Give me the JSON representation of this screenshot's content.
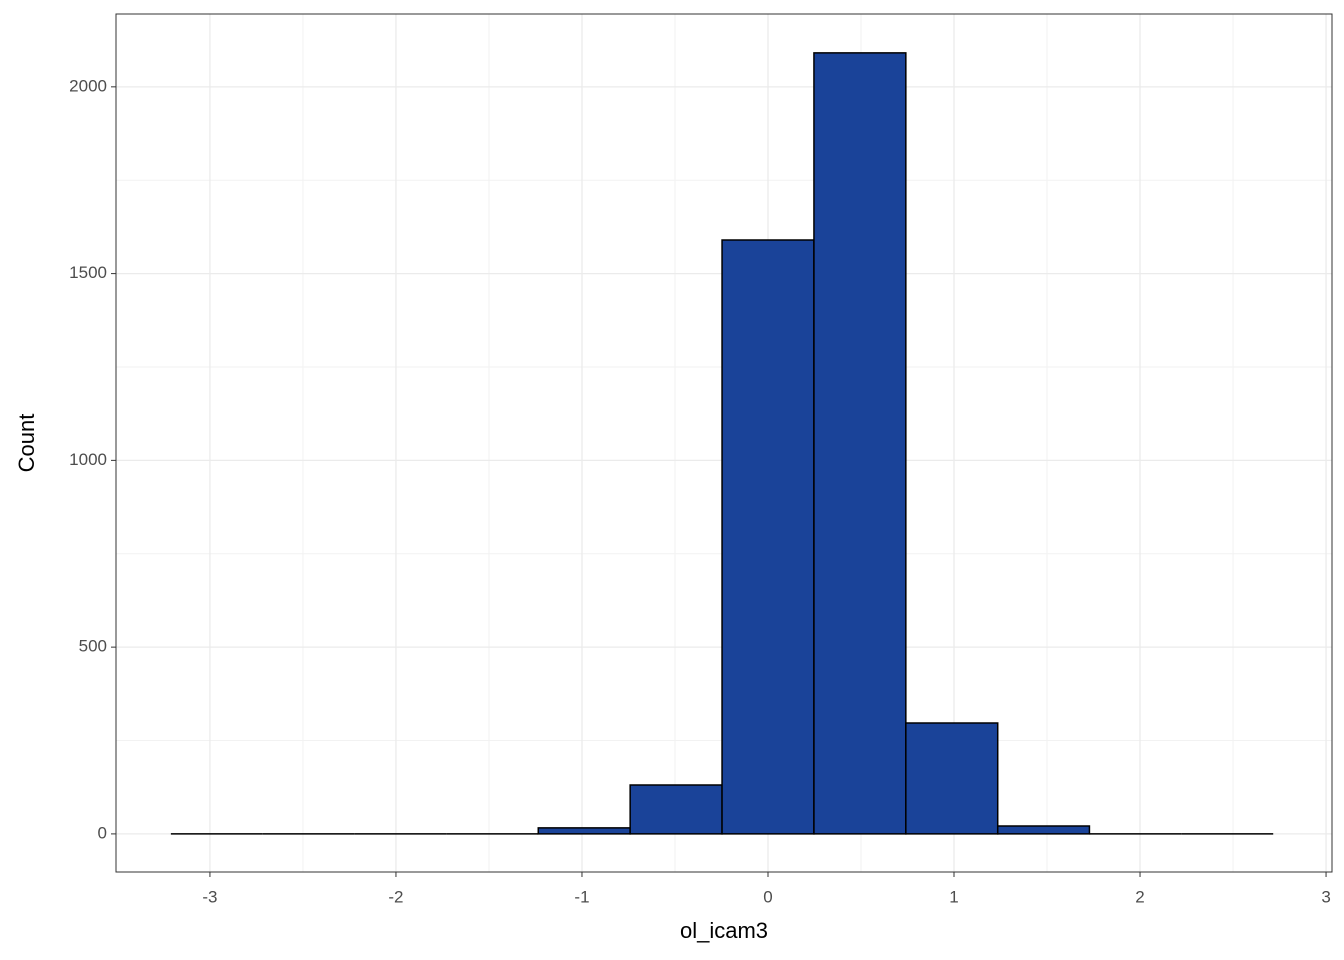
{
  "chart_data": {
    "type": "histogram",
    "x_label": "ol_icam3",
    "y_label": "Count",
    "bins": [
      -3.21,
      -2.716,
      -2.222,
      -1.729,
      -1.235,
      -0.741,
      -0.247,
      0.247,
      0.741,
      1.235,
      1.728,
      2.222,
      2.716
    ],
    "values": [
      0,
      0,
      0,
      0,
      16,
      131,
      1590,
      2091,
      297,
      21,
      0,
      0
    ],
    "color": "#1a4399",
    "xlim": [
      -3.505,
      3.032
    ],
    "xticks": [
      -3,
      -2,
      -1,
      0,
      1,
      2,
      3
    ],
    "x_minor_ticks": [
      -2.5,
      -1.5,
      -0.5,
      0.5,
      1.5,
      2.5
    ],
    "ylim": [
      -102,
      2195
    ],
    "yticks": [
      0,
      500,
      1000,
      1500,
      2000
    ],
    "y_minor_ticks": [
      250,
      750,
      1250,
      1750
    ],
    "grid": true
  }
}
